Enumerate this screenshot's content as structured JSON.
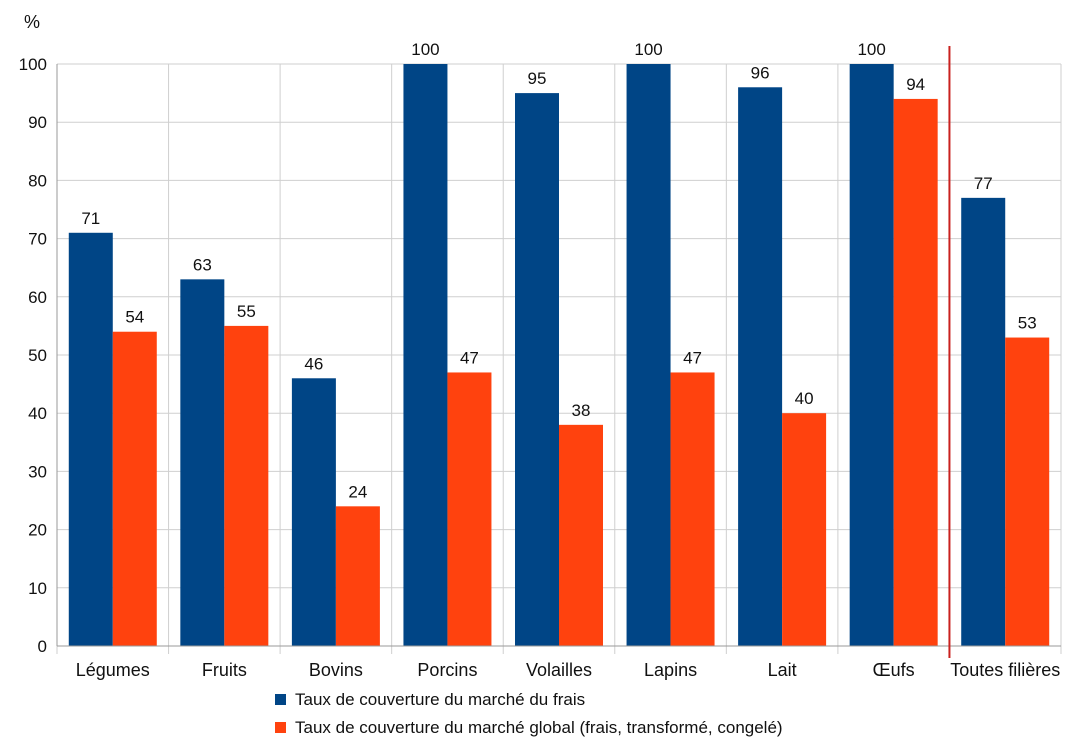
{
  "chart_data": {
    "type": "bar",
    "title": "",
    "xlabel": "",
    "ylabel": "%",
    "ylim": [
      0,
      100
    ],
    "yticks": [
      0,
      10,
      20,
      30,
      40,
      50,
      60,
      70,
      80,
      90,
      100
    ],
    "grid": true,
    "legend_position": "bottom",
    "categories": [
      "Légumes",
      "Fruits",
      "Bovins",
      "Porcins",
      "Volailles",
      "Lapins",
      "Lait",
      "Œufs",
      "Toutes filières"
    ],
    "series": [
      {
        "name": "Taux de couverture du marché du frais",
        "color": "#004586",
        "values": [
          71,
          63,
          46,
          100,
          95,
          100,
          96,
          100,
          77
        ]
      },
      {
        "name": "Taux de couverture du marché global (frais, transformé, congelé)",
        "color": "#ff420e",
        "values": [
          54,
          55,
          24,
          47,
          38,
          47,
          40,
          94,
          53
        ]
      }
    ],
    "separator": {
      "after_category_index": 7,
      "color": "#c9211e"
    }
  }
}
